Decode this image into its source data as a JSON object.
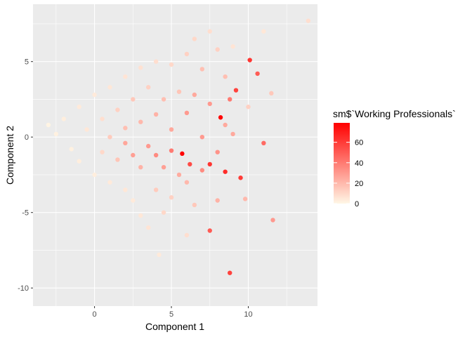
{
  "chart_data": {
    "type": "scatter",
    "title": "",
    "xlabel": "Component 1",
    "ylabel": "Component 2",
    "xlim": [
      -4,
      14.5
    ],
    "ylim": [
      -11.2,
      8.8
    ],
    "x_ticks": [
      0,
      5,
      10
    ],
    "y_ticks": [
      -10,
      -5,
      0,
      5
    ],
    "x_tick_labels": [
      "0",
      "5",
      "10"
    ],
    "y_tick_labels": [
      "-10",
      "-5",
      "0",
      "5"
    ],
    "grid": true,
    "panel_background": "#ebebeb",
    "grid_color": "#ffffff",
    "color_scale": {
      "title": "sm$`Working Professionals`",
      "low_color": "#fff7e6",
      "high_color": "#ff0000",
      "min": 0,
      "max": 79,
      "breaks": [
        0,
        20,
        40,
        60
      ],
      "break_labels": [
        "0",
        "20",
        "40",
        "60"
      ],
      "legend_position": "right"
    },
    "points": [
      {
        "x": -3.0,
        "y": 0.8,
        "c": 1
      },
      {
        "x": -2.5,
        "y": 0.2,
        "c": 2
      },
      {
        "x": -2.0,
        "y": 1.2,
        "c": 3
      },
      {
        "x": -1.5,
        "y": -0.8,
        "c": 2
      },
      {
        "x": -1.0,
        "y": 2.0,
        "c": 4
      },
      {
        "x": -1.0,
        "y": -1.6,
        "c": 3
      },
      {
        "x": -0.5,
        "y": 0.5,
        "c": 5
      },
      {
        "x": 0.0,
        "y": 2.8,
        "c": 4
      },
      {
        "x": 0.0,
        "y": -2.5,
        "c": 3
      },
      {
        "x": 0.5,
        "y": 1.2,
        "c": 8
      },
      {
        "x": 0.5,
        "y": -1.0,
        "c": 10
      },
      {
        "x": 1.0,
        "y": 3.3,
        "c": 5
      },
      {
        "x": 1.0,
        "y": 0.0,
        "c": 14
      },
      {
        "x": 1.0,
        "y": -3.0,
        "c": 4
      },
      {
        "x": 1.5,
        "y": 1.8,
        "c": 12
      },
      {
        "x": 1.5,
        "y": -1.5,
        "c": 16
      },
      {
        "x": 2.0,
        "y": 4.0,
        "c": 6
      },
      {
        "x": 2.0,
        "y": 0.6,
        "c": 18
      },
      {
        "x": 2.0,
        "y": -0.4,
        "c": 26
      },
      {
        "x": 2.0,
        "y": -3.5,
        "c": 5
      },
      {
        "x": 2.5,
        "y": 2.5,
        "c": 15
      },
      {
        "x": 2.5,
        "y": -1.2,
        "c": 28
      },
      {
        "x": 2.5,
        "y": -4.2,
        "c": 4
      },
      {
        "x": 3.0,
        "y": 4.6,
        "c": 7
      },
      {
        "x": 3.0,
        "y": 1.0,
        "c": 20
      },
      {
        "x": 3.0,
        "y": -2.0,
        "c": 22
      },
      {
        "x": 3.0,
        "y": -5.2,
        "c": 5
      },
      {
        "x": 3.5,
        "y": 3.3,
        "c": 12
      },
      {
        "x": 3.5,
        "y": -0.6,
        "c": 30
      },
      {
        "x": 3.5,
        "y": -6.0,
        "c": 6
      },
      {
        "x": 4.0,
        "y": 5.0,
        "c": 8
      },
      {
        "x": 4.0,
        "y": 1.5,
        "c": 22
      },
      {
        "x": 4.0,
        "y": -1.2,
        "c": 35
      },
      {
        "x": 4.0,
        "y": -3.5,
        "c": 14
      },
      {
        "x": 4.2,
        "y": -7.8,
        "c": 4
      },
      {
        "x": 4.5,
        "y": 2.5,
        "c": 18
      },
      {
        "x": 4.5,
        "y": -2.0,
        "c": 28
      },
      {
        "x": 4.5,
        "y": -5.0,
        "c": 10
      },
      {
        "x": 5.0,
        "y": 4.8,
        "c": 10
      },
      {
        "x": 5.0,
        "y": 0.5,
        "c": 25
      },
      {
        "x": 5.0,
        "y": -0.9,
        "c": 40
      },
      {
        "x": 5.0,
        "y": -4.0,
        "c": 12
      },
      {
        "x": 5.5,
        "y": 3.0,
        "c": 16
      },
      {
        "x": 5.5,
        "y": -2.5,
        "c": 24
      },
      {
        "x": 5.7,
        "y": -1.1,
        "c": 79
      },
      {
        "x": 6.0,
        "y": 5.5,
        "c": 12
      },
      {
        "x": 6.0,
        "y": 1.6,
        "c": 30
      },
      {
        "x": 6.0,
        "y": -3.0,
        "c": 20
      },
      {
        "x": 6.0,
        "y": -6.5,
        "c": 8
      },
      {
        "x": 6.2,
        "y": -1.8,
        "c": 55
      },
      {
        "x": 6.5,
        "y": 6.5,
        "c": 10
      },
      {
        "x": 6.5,
        "y": 2.8,
        "c": 25
      },
      {
        "x": 6.5,
        "y": -4.5,
        "c": 15
      },
      {
        "x": 7.0,
        "y": 4.5,
        "c": 18
      },
      {
        "x": 7.0,
        "y": 0.0,
        "c": 30
      },
      {
        "x": 7.0,
        "y": -2.2,
        "c": 35
      },
      {
        "x": 7.5,
        "y": 7.0,
        "c": 8
      },
      {
        "x": 7.5,
        "y": 2.2,
        "c": 30
      },
      {
        "x": 7.5,
        "y": -1.8,
        "c": 62
      },
      {
        "x": 7.5,
        "y": -6.2,
        "c": 50
      },
      {
        "x": 8.0,
        "y": 5.8,
        "c": 12
      },
      {
        "x": 8.2,
        "y": 1.3,
        "c": 78
      },
      {
        "x": 8.0,
        "y": -1.0,
        "c": 32
      },
      {
        "x": 8.0,
        "y": -4.2,
        "c": 22
      },
      {
        "x": 8.5,
        "y": -2.3,
        "c": 65
      },
      {
        "x": 8.5,
        "y": 0.8,
        "c": 25
      },
      {
        "x": 8.5,
        "y": 4.0,
        "c": 18
      },
      {
        "x": 8.8,
        "y": 2.5,
        "c": 40
      },
      {
        "x": 8.8,
        "y": -9.0,
        "c": 58
      },
      {
        "x": 9.0,
        "y": 6.0,
        "c": 6
      },
      {
        "x": 9.0,
        "y": 0.2,
        "c": 25
      },
      {
        "x": 9.2,
        "y": 3.1,
        "c": 58
      },
      {
        "x": 9.5,
        "y": -2.7,
        "c": 60
      },
      {
        "x": 9.8,
        "y": -4.1,
        "c": 20
      },
      {
        "x": 10.0,
        "y": 2.0,
        "c": 12
      },
      {
        "x": 10.1,
        "y": 5.1,
        "c": 62
      },
      {
        "x": 10.6,
        "y": 4.2,
        "c": 50
      },
      {
        "x": 11.0,
        "y": -0.4,
        "c": 45
      },
      {
        "x": 11.0,
        "y": 7.0,
        "c": 5
      },
      {
        "x": 11.5,
        "y": 2.9,
        "c": 15
      },
      {
        "x": 11.6,
        "y": -5.5,
        "c": 30
      },
      {
        "x": 13.9,
        "y": 7.7,
        "c": 8
      }
    ]
  }
}
